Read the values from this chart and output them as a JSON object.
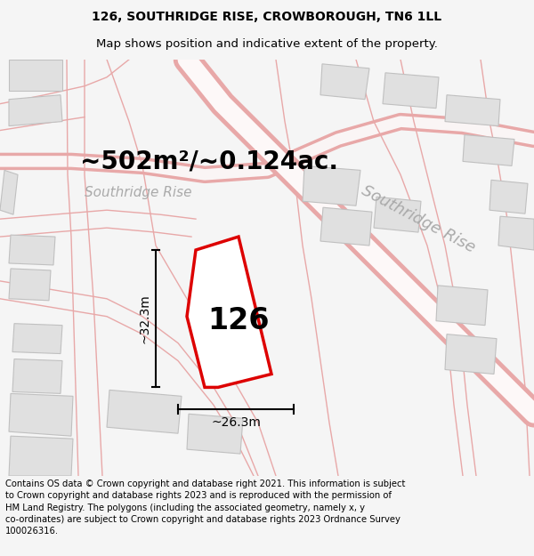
{
  "title_line1": "126, SOUTHRIDGE RISE, CROWBOROUGH, TN6 1LL",
  "title_line2": "Map shows position and indicative extent of the property.",
  "footer_text": "Contains OS data © Crown copyright and database right 2021. This information is subject to Crown copyright and database rights 2023 and is reproduced with the permission of HM Land Registry. The polygons (including the associated geometry, namely x, y co-ordinates) are subject to Crown copyright and database rights 2023 Ordnance Survey 100026316.",
  "property_number": "126",
  "area_text": "~502m²/~0.124ac.",
  "dim_width": "~26.3m",
  "dim_height": "~32.3m",
  "road_label_1": "Southridge Rise",
  "road_label_2": "Southridge Rise",
  "bg_color": "#f5f5f5",
  "map_bg": "#f8f8f8",
  "plot_outline_color": "#dd0000",
  "road_line_color": "#e8a8a8",
  "road_fill_color": "#f5dada",
  "building_fc": "#e0e0e0",
  "building_ec": "#c0c0c0",
  "title_fontsize": 10,
  "footer_fontsize": 7.2,
  "property_label_fontsize": 24,
  "area_fontsize": 20,
  "dim_fontsize": 10,
  "road_label_fontsize": 13,
  "road_label_color": "#aaaaaa"
}
